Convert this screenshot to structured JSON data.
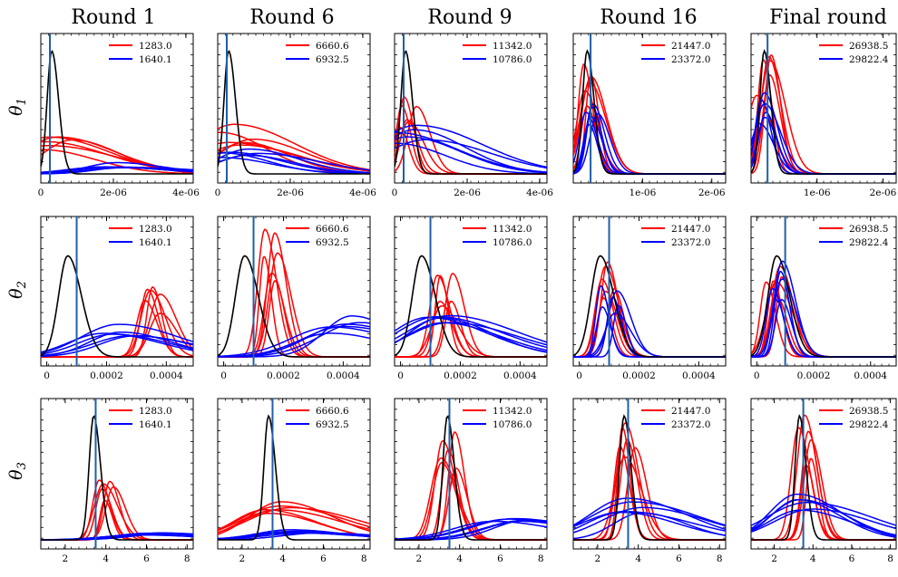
{
  "figure": {
    "column_titles": [
      "Round 1",
      "Round 6",
      "Round 9",
      "Round 16",
      "Final round"
    ],
    "row_labels": [
      "θ",
      "θ",
      "θ"
    ],
    "row_label_subscripts": [
      "1",
      "2",
      "3"
    ]
  },
  "colors": {
    "red": "#ff0000",
    "blue": "#0000ff",
    "black": "#000000",
    "truth_line": "#1f5fa8"
  },
  "chart_data": [
    {
      "type": "line",
      "row": 1,
      "col": 1,
      "title": "Round 1",
      "xlabel": "",
      "ylabel": "θ1",
      "xlim": [
        0,
        4.2e-06
      ],
      "xticks": [
        "0",
        "2e-06",
        "4e-06"
      ],
      "truth": 2.5e-07,
      "legend": [
        "1283.0",
        "1640.1"
      ],
      "legend_placement": "top-right",
      "series": [
        {
          "name": "1283.0",
          "color": "red",
          "peak": 4e-07,
          "height": 0.3
        },
        {
          "name": "1640.1",
          "color": "blue",
          "peak": 2e-06,
          "height": 0.08
        }
      ],
      "posterior_peak": 3e-07
    },
    {
      "type": "line",
      "row": 1,
      "col": 2,
      "title": "Round 6",
      "xlabel": "",
      "ylabel": "",
      "xlim": [
        0,
        4.2e-06
      ],
      "xticks": [
        "0",
        "2e-06",
        "4e-06"
      ],
      "truth": 2.5e-07,
      "legend": [
        "6660.6",
        "6932.5"
      ],
      "legend_placement": "top-right",
      "series": [
        {
          "name": "6660.6",
          "color": "red",
          "peak": 5e-07,
          "height": 0.35
        },
        {
          "name": "6932.5",
          "color": "blue",
          "peak": 6e-07,
          "height": 0.18
        }
      ],
      "posterior_peak": 3e-07
    },
    {
      "type": "line",
      "row": 1,
      "col": 3,
      "title": "Round 9",
      "xlabel": "",
      "ylabel": "",
      "xlim": [
        0,
        4.2e-06
      ],
      "xticks": [
        "0",
        "2e-06",
        "4e-06"
      ],
      "truth": 2.5e-07,
      "legend": [
        "11342.0",
        "10786.0"
      ],
      "legend_placement": "top-right",
      "series": [
        {
          "name": "11342.0",
          "color": "red",
          "peak": 3.5e-07,
          "height": 0.55
        },
        {
          "name": "10786.0",
          "color": "blue",
          "peak": 4e-07,
          "height": 0.35
        }
      ],
      "posterior_peak": 3e-07
    },
    {
      "type": "line",
      "row": 1,
      "col": 4,
      "title": "Round 16",
      "xlabel": "",
      "ylabel": "",
      "xlim": [
        0,
        2.2e-06
      ],
      "xticks": [
        "1e-06",
        "2e-06"
      ],
      "truth": 2.5e-07,
      "legend": [
        "21447.0",
        "23372.0"
      ],
      "legend_placement": "top-right",
      "series": [
        {
          "name": "21447.0",
          "color": "red",
          "peak": 2e-07,
          "height": 0.85
        },
        {
          "name": "23372.0",
          "color": "blue",
          "peak": 2.5e-07,
          "height": 0.5
        }
      ],
      "posterior_peak": 2e-07
    },
    {
      "type": "line",
      "row": 1,
      "col": 5,
      "title": "Final round",
      "xlabel": "",
      "ylabel": "",
      "xlim": [
        0,
        2.2e-06
      ],
      "xticks": [
        "1e-06",
        "2e-06"
      ],
      "truth": 2.5e-07,
      "legend": [
        "26938.5",
        "29822.4"
      ],
      "legend_placement": "top-right",
      "series": [
        {
          "name": "26938.5",
          "color": "red",
          "peak": 2e-07,
          "height": 0.85
        },
        {
          "name": "29822.4",
          "color": "blue",
          "peak": 2.5e-07,
          "height": 0.6
        }
      ],
      "posterior_peak": 2e-07
    },
    {
      "type": "line",
      "row": 2,
      "col": 1,
      "title": "",
      "xlabel": "",
      "ylabel": "θ2",
      "xlim": [
        -2e-05,
        0.00049
      ],
      "xticks": [
        "0",
        "0.0002",
        "0.0004"
      ],
      "truth": 0.0001,
      "legend": [
        "1283.0",
        "1640.1"
      ],
      "legend_placement": "top-right",
      "series": [
        {
          "name": "1283.0",
          "color": "red",
          "peak": 0.00035,
          "height": 0.5
        },
        {
          "name": "1640.1",
          "color": "blue",
          "peak": 0.00025,
          "height": 0.25
        }
      ],
      "posterior_peak": 7e-05
    },
    {
      "type": "line",
      "row": 2,
      "col": 2,
      "title": "",
      "xlabel": "",
      "ylabel": "",
      "xlim": [
        -2e-05,
        0.00049
      ],
      "xticks": [
        "0",
        "0.0002",
        "0.0004"
      ],
      "truth": 0.0001,
      "legend": [
        "6660.6",
        "6932.5"
      ],
      "legend_placement": "top-right",
      "series": [
        {
          "name": "6660.6",
          "color": "red",
          "peak": 0.00016,
          "height": 0.95
        },
        {
          "name": "6932.5",
          "color": "blue",
          "peak": 0.0004,
          "height": 0.3
        }
      ],
      "posterior_peak": 7e-05
    },
    {
      "type": "line",
      "row": 2,
      "col": 3,
      "title": "",
      "xlabel": "",
      "ylabel": "",
      "xlim": [
        -2e-05,
        0.00049
      ],
      "xticks": [
        "0",
        "0.0002",
        "0.0004"
      ],
      "truth": 0.0001,
      "legend": [
        "11342.0",
        "10786.0"
      ],
      "legend_placement": "top-right",
      "series": [
        {
          "name": "11342.0",
          "color": "red",
          "peak": 0.00015,
          "height": 0.65
        },
        {
          "name": "10786.0",
          "color": "blue",
          "peak": 0.00015,
          "height": 0.3
        }
      ],
      "posterior_peak": 7e-05
    },
    {
      "type": "line",
      "row": 2,
      "col": 4,
      "title": "",
      "xlabel": "",
      "ylabel": "",
      "xlim": [
        -2e-05,
        0.00049
      ],
      "xticks": [
        "0",
        "0.0002",
        "0.0004"
      ],
      "truth": 0.0001,
      "legend": [
        "21447.0",
        "23372.0"
      ],
      "legend_placement": "top-right",
      "series": [
        {
          "name": "21447.0",
          "color": "red",
          "peak": 9e-05,
          "height": 0.75
        },
        {
          "name": "23372.0",
          "color": "blue",
          "peak": 0.0001,
          "height": 0.55
        }
      ],
      "posterior_peak": 7e-05
    },
    {
      "type": "line",
      "row": 2,
      "col": 5,
      "title": "",
      "xlabel": "",
      "ylabel": "",
      "xlim": [
        -2e-05,
        0.00049
      ],
      "xticks": [
        "0",
        "0.0002",
        "0.0004"
      ],
      "truth": 0.0001,
      "legend": [
        "26938.5",
        "29822.4"
      ],
      "legend_placement": "top-right",
      "series": [
        {
          "name": "26938.5",
          "color": "red",
          "peak": 6e-05,
          "height": 0.78
        },
        {
          "name": "29822.4",
          "color": "blue",
          "peak": 7e-05,
          "height": 0.72
        }
      ],
      "posterior_peak": 7e-05
    },
    {
      "type": "line",
      "row": 3,
      "col": 1,
      "title": "",
      "xlabel": "",
      "ylabel": "θ3",
      "xlim": [
        0.8,
        8.3
      ],
      "xticks": [
        "2",
        "4",
        "6",
        "8"
      ],
      "truth": 3.5,
      "legend": [
        "1283.0",
        "1640.1"
      ],
      "legend_placement": "top-right",
      "series": [
        {
          "name": "1283.0",
          "color": "red",
          "peak": 4.1,
          "height": 0.5
        },
        {
          "name": "1640.1",
          "color": "blue",
          "peak": 6.0,
          "height": 0.06
        }
      ],
      "posterior_peak": 3.4
    },
    {
      "type": "line",
      "row": 3,
      "col": 2,
      "title": "",
      "xlabel": "",
      "ylabel": "",
      "xlim": [
        0.8,
        8.3
      ],
      "xticks": [
        "2",
        "4",
        "6",
        "8"
      ],
      "truth": 3.5,
      "legend": [
        "6660.6",
        "6932.5"
      ],
      "legend_placement": "top-right",
      "series": [
        {
          "name": "6660.6",
          "color": "red",
          "peak": 3.5,
          "height": 0.28
        },
        {
          "name": "6932.5",
          "color": "blue",
          "peak": 5.0,
          "height": 0.08
        }
      ],
      "posterior_peak": 3.3
    },
    {
      "type": "line",
      "row": 3,
      "col": 3,
      "title": "",
      "xlabel": "",
      "ylabel": "",
      "xlim": [
        0.8,
        8.3
      ],
      "xticks": [
        "2",
        "4",
        "6",
        "8"
      ],
      "truth": 3.5,
      "legend": [
        "11342.0",
        "10786.0"
      ],
      "legend_placement": "top-right",
      "series": [
        {
          "name": "11342.0",
          "color": "red",
          "peak": 3.5,
          "height": 0.8
        },
        {
          "name": "10786.0",
          "color": "blue",
          "peak": 6.5,
          "height": 0.15
        }
      ],
      "posterior_peak": 3.4
    },
    {
      "type": "line",
      "row": 3,
      "col": 4,
      "title": "",
      "xlabel": "",
      "ylabel": "",
      "xlim": [
        0.8,
        8.3
      ],
      "xticks": [
        "2",
        "4",
        "6",
        "8"
      ],
      "truth": 3.5,
      "legend": [
        "21447.0",
        "23372.0"
      ],
      "legend_placement": "top-right",
      "series": [
        {
          "name": "21447.0",
          "color": "red",
          "peak": 3.4,
          "height": 0.85
        },
        {
          "name": "23372.0",
          "color": "blue",
          "peak": 4.0,
          "height": 0.3
        }
      ],
      "posterior_peak": 3.3
    },
    {
      "type": "line",
      "row": 3,
      "col": 5,
      "title": "",
      "xlabel": "",
      "ylabel": "",
      "xlim": [
        0.8,
        8.3
      ],
      "xticks": [
        "2",
        "4",
        "6",
        "8"
      ],
      "truth": 3.5,
      "legend": [
        "26938.5",
        "29822.4"
      ],
      "legend_placement": "top-right",
      "series": [
        {
          "name": "26938.5",
          "color": "red",
          "peak": 3.6,
          "height": 0.88
        },
        {
          "name": "29822.4",
          "color": "blue",
          "peak": 3.7,
          "height": 0.35
        }
      ],
      "posterior_peak": 3.3
    }
  ]
}
